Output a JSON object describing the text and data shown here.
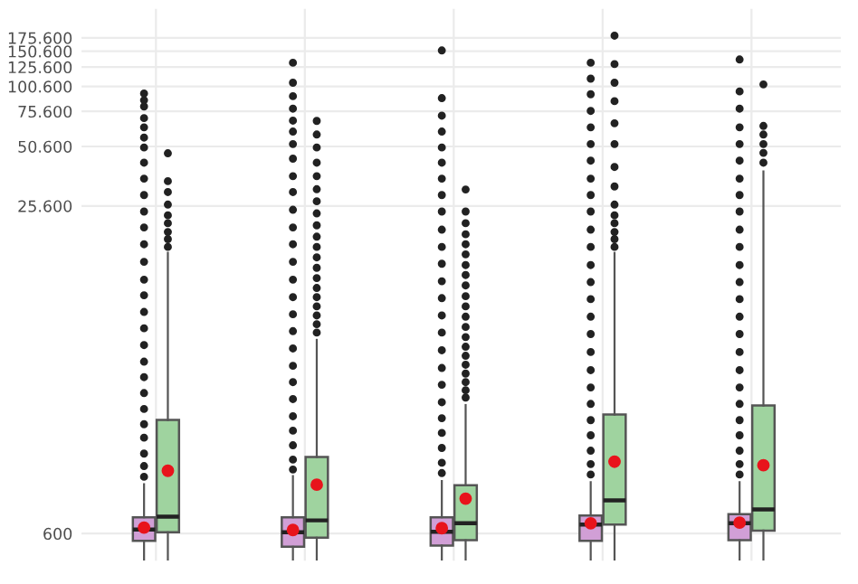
{
  "chart_data": {
    "type": "box",
    "categories": [
      null,
      null,
      null,
      null,
      null
    ],
    "ylim": [
      440,
      245000
    ],
    "log": "y",
    "yticks": [
      600,
      {
        "value": 25600,
        "label": "25.600"
      },
      {
        "value": 50600,
        "label": "50.600"
      },
      {
        "value": 75600,
        "label": "75.600"
      },
      {
        "value": 100600,
        "label": "100.600"
      },
      {
        "value": 125600,
        "label": "125.600"
      },
      {
        "value": 150600,
        "label": "150.600"
      },
      {
        "value": 175600,
        "label": "175.600"
      }
    ],
    "tick_labels": "y",
    "grid": true,
    "series": [
      {
        "color": "#d19fd6",
        "boxes": [
          {
            "low": 446,
            "q1": 552,
            "median": 629,
            "q3": 723,
            "high": 1057,
            "mean": 642,
            "outliers": [
              1150,
              1300,
              1500,
              1800,
              2100,
              2500,
              3000,
              3600,
              4300,
              5200,
              6300,
              7600,
              9200,
              11000,
              13500,
              16500,
              20000,
              24000,
              29000,
              35000,
              42000,
              50000,
              56000,
              63000,
              70000,
              80000,
              86000,
              92800
            ]
          },
          {
            "low": 446,
            "q1": 516,
            "median": 609,
            "q3": 723,
            "high": 1158,
            "mean": 625,
            "outliers": [
              1250,
              1400,
              1650,
              1950,
              2300,
              2800,
              3400,
              4100,
              5000,
              6100,
              7400,
              9000,
              11000,
              13500,
              16500,
              20000,
              24500,
              30000,
              36000,
              44000,
              52000,
              60000,
              68000,
              78000,
              90000,
              105000,
              132000
            ]
          },
          {
            "low": 446,
            "q1": 523,
            "median": 612,
            "q3": 723,
            "high": 1095,
            "mean": 638,
            "outliers": [
              1200,
              1350,
              1600,
              1900,
              2250,
              2700,
              3300,
              4000,
              4900,
              6000,
              7300,
              8900,
              10800,
              13200,
              16000,
              19500,
              24000,
              29000,
              35000,
              42000,
              50000,
              60000,
              72000,
              88000,
              152000
            ]
          },
          {
            "low": 446,
            "q1": 552,
            "median": 665,
            "q3": 738,
            "high": 1080,
            "mean": 675,
            "outliers": [
              1180,
              1330,
              1550,
              1850,
              2200,
              2650,
              3200,
              3900,
              4800,
              5900,
              7200,
              8800,
              10700,
              13000,
              16000,
              19500,
              24000,
              29000,
              35000,
              43000,
              52000,
              63000,
              76000,
              92000,
              110000,
              132000
            ]
          },
          {
            "low": 446,
            "q1": 556,
            "median": 675,
            "q3": 749,
            "high": 1080,
            "mean": 680,
            "outliers": [
              1180,
              1330,
              1550,
              1850,
              2200,
              2650,
              3200,
              3900,
              4800,
              5900,
              7200,
              8800,
              10700,
              13000,
              16000,
              19500,
              24000,
              29000,
              35000,
              43000,
              52000,
              63000,
              78000,
              95000,
              137000
            ]
          }
        ]
      },
      {
        "color": "#9fd39f",
        "boxes": [
          {
            "low": 446,
            "q1": 609,
            "median": 728,
            "q3": 2204,
            "high": 14950,
            "mean": 1232,
            "outliers": [
              16000,
              17500,
              19000,
              21000,
              23000,
              26000,
              30000,
              34000,
              46800
            ]
          },
          {
            "low": 446,
            "q1": 572,
            "median": 698,
            "q3": 1443,
            "high": 5520,
            "mean": 1050,
            "outliers": [
              6000,
              6600,
              7300,
              8100,
              9000,
              10000,
              11200,
              12600,
              14200,
              16000,
              18000,
              20500,
              23500,
              27000,
              31000,
              36000,
              42000,
              50000,
              58000,
              67800
            ]
          },
          {
            "low": 446,
            "q1": 556,
            "median": 675,
            "q3": 1044,
            "high": 2616,
            "mean": 895,
            "outliers": [
              2850,
              3100,
              3400,
              3750,
              4150,
              4600,
              5100,
              5700,
              6400,
              7200,
              8100,
              9100,
              10300,
              11600,
              13000,
              14700,
              16500,
              18500,
              21000,
              24000,
              30900
            ]
          },
          {
            "low": 446,
            "q1": 665,
            "median": 877,
            "q3": 2345,
            "high": 14950,
            "mean": 1367,
            "outliers": [
              16000,
              17500,
              19000,
              21000,
              23000,
              26000,
              32000,
              40000,
              52000,
              66000,
              85000,
              105000,
              130000,
              180000
            ]
          },
          {
            "low": 446,
            "q1": 621,
            "median": 791,
            "q3": 2600,
            "high": 38000,
            "mean": 1312,
            "outliers": [
              42000,
              47000,
              52000,
              58000,
              64000,
              103000
            ]
          }
        ]
      }
    ]
  }
}
